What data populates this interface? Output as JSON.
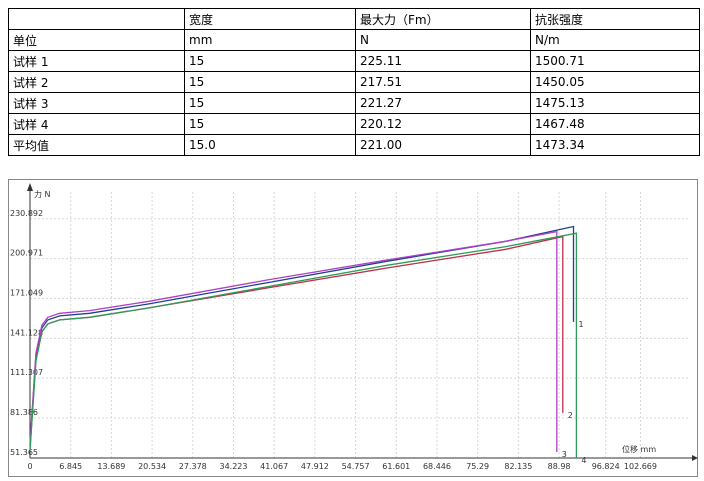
{
  "table": {
    "header": [
      "",
      "宽度",
      "最大力（Fm）",
      "抗张强度"
    ],
    "rows": [
      [
        "单位",
        "mm",
        "N",
        "N/m"
      ],
      [
        "试样 1",
        "15",
        "225.11",
        "1500.71"
      ],
      [
        "试样 2",
        "15",
        "217.51",
        "1450.05"
      ],
      [
        "试样 3",
        "15",
        "221.27",
        "1475.13"
      ],
      [
        "试样 4",
        "15",
        "220.12",
        "1467.48"
      ],
      [
        "平均值",
        "15.0",
        "221.00",
        "1473.34"
      ]
    ]
  },
  "chart_data": {
    "type": "line",
    "y_label": "力 N",
    "x_label": "位移 mm",
    "xlim": [
      0,
      111
    ],
    "ylim": [
      51.365,
      245
    ],
    "xticks": [
      0,
      6.845,
      13.689,
      20.534,
      27.378,
      34.223,
      41.067,
      47.912,
      54.757,
      61.601,
      68.446,
      75.29,
      82.135,
      88.98,
      96.824,
      102.669
    ],
    "yticks": [
      51.365,
      81.386,
      111.307,
      141.128,
      171.049,
      200.971,
      230.892
    ],
    "grid": true,
    "series": [
      {
        "name": "1",
        "color": "#1f3f8f",
        "x": [
          0,
          1,
          2,
          3,
          5,
          10,
          20,
          40,
          60,
          80,
          91.4,
          91.4
        ],
        "values": [
          60,
          128,
          149,
          155,
          158,
          160,
          167,
          183,
          199,
          214,
          225.11,
          153.5
        ]
      },
      {
        "name": "2",
        "color": "#c0304a",
        "x": [
          0,
          1,
          2,
          3,
          5,
          10,
          20,
          40,
          60,
          80,
          89.6,
          89.6
        ],
        "values": [
          58,
          125,
          146,
          152,
          155,
          157,
          164,
          179,
          194,
          208,
          217.51,
          85.2
        ]
      },
      {
        "name": "3",
        "color": "#b040c8",
        "x": [
          0,
          1,
          2,
          3,
          5,
          10,
          20,
          40,
          60,
          80,
          88.6,
          88.6
        ],
        "values": [
          62,
          130,
          151,
          157,
          160,
          162,
          169,
          185,
          200,
          214,
          221.27,
          55.9
        ]
      },
      {
        "name": "4",
        "color": "#2e9a5a",
        "x": [
          0,
          1,
          2,
          3,
          5,
          10,
          20,
          40,
          60,
          80,
          91.9,
          91.9
        ],
        "values": [
          57,
          124,
          146,
          152,
          155,
          157,
          164,
          180,
          196,
          210,
          220.12,
          51.4
        ]
      }
    ]
  }
}
